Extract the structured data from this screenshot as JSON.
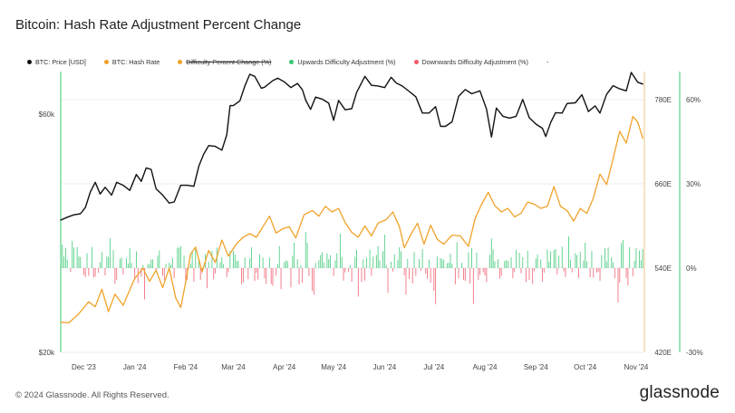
{
  "title": "Bitcoin: Hash Rate Adjustment Percent Change",
  "footer": "© 2024 Glassnode. All Rights Reserved.",
  "brand": "glassnode",
  "legend": [
    {
      "label": "BTC: Price [USD]",
      "color": "#111111",
      "strike": false
    },
    {
      "label": "BTC: Hash Rate",
      "color": "#f0a229",
      "strike": false
    },
    {
      "label": "Difficulty Percent Change (%)",
      "color": "#f0a229",
      "strike": true
    },
    {
      "label": "Upwards Difficulty Adjustment (%)",
      "color": "#37c871",
      "strike": false
    },
    {
      "label": "Downwards Difficulty Adjustment (%)",
      "color": "#ef5a6a",
      "strike": false
    },
    {
      "label": "-",
      "color": "",
      "strike": false
    }
  ],
  "chart_data": {
    "type": "line",
    "x_range": [
      "2023-11-17",
      "2024-11-06"
    ],
    "x_ticks": [
      {
        "label": "Dec '23",
        "date": "2023-12-01"
      },
      {
        "label": "Jan '24",
        "date": "2024-01-01"
      },
      {
        "label": "Feb '24",
        "date": "2024-02-01"
      },
      {
        "label": "Mar '24",
        "date": "2024-03-01"
      },
      {
        "label": "Apr '24",
        "date": "2024-04-01"
      },
      {
        "label": "May '24",
        "date": "2024-05-01"
      },
      {
        "label": "Jun '24",
        "date": "2024-06-01"
      },
      {
        "label": "Jul '24",
        "date": "2024-07-01"
      },
      {
        "label": "Aug '24",
        "date": "2024-08-01"
      },
      {
        "label": "Sep '24",
        "date": "2024-09-01"
      },
      {
        "label": "Oct '24",
        "date": "2024-10-01"
      },
      {
        "label": "Nov '24",
        "date": "2024-11-01"
      }
    ],
    "axes": {
      "price": {
        "scale": "log",
        "range": [
          20000,
          73000
        ],
        "tick_labels": [
          {
            "label": "$20k",
            "value": 20000
          },
          {
            "label": "$60k",
            "value": 60000
          }
        ]
      },
      "hash_rate": {
        "range": [
          420,
          820
        ],
        "tick_labels": [
          {
            "label": "420E",
            "value": 420
          },
          {
            "label": "540E",
            "value": 540
          },
          {
            "label": "660E",
            "value": 660
          },
          {
            "label": "780E",
            "value": 780
          }
        ]
      },
      "pct": {
        "range": [
          -30,
          70
        ],
        "tick_labels": [
          {
            "label": "-30%",
            "value": -30
          },
          {
            "label": "0%",
            "value": 0
          },
          {
            "label": "30%",
            "value": 30
          },
          {
            "label": "60%",
            "value": 60
          }
        ]
      }
    },
    "grid": true,
    "series": [
      {
        "name": "BTC: Price [USD]",
        "color": "#111111",
        "axis": "price",
        "points": [
          [
            "2023-11-17",
            36800
          ],
          [
            "2023-11-21",
            37300
          ],
          [
            "2023-11-25",
            37700
          ],
          [
            "2023-11-29",
            37900
          ],
          [
            "2023-12-02",
            39000
          ],
          [
            "2023-12-05",
            41900
          ],
          [
            "2023-12-08",
            43800
          ],
          [
            "2023-12-11",
            41500
          ],
          [
            "2023-12-14",
            42800
          ],
          [
            "2023-12-18",
            41300
          ],
          [
            "2023-12-21",
            43800
          ],
          [
            "2023-12-25",
            43200
          ],
          [
            "2023-12-29",
            42200
          ],
          [
            "2024-01-02",
            45400
          ],
          [
            "2024-01-05",
            44000
          ],
          [
            "2024-01-08",
            46800
          ],
          [
            "2024-01-11",
            46500
          ],
          [
            "2024-01-14",
            42500
          ],
          [
            "2024-01-18",
            41300
          ],
          [
            "2024-01-22",
            39800
          ],
          [
            "2024-01-25",
            40000
          ],
          [
            "2024-01-29",
            43200
          ],
          [
            "2024-02-02",
            43200
          ],
          [
            "2024-02-06",
            43000
          ],
          [
            "2024-02-09",
            47200
          ],
          [
            "2024-02-12",
            49900
          ],
          [
            "2024-02-15",
            51900
          ],
          [
            "2024-02-19",
            51700
          ],
          [
            "2024-02-23",
            50800
          ],
          [
            "2024-02-26",
            54500
          ],
          [
            "2024-02-28",
            62400
          ],
          [
            "2024-03-01",
            62400
          ],
          [
            "2024-03-05",
            63800
          ],
          [
            "2024-03-08",
            68300
          ],
          [
            "2024-03-11",
            72100
          ],
          [
            "2024-03-14",
            71400
          ],
          [
            "2024-03-18",
            67600
          ],
          [
            "2024-03-20",
            67900
          ],
          [
            "2024-03-25",
            70000
          ],
          [
            "2024-03-28",
            70800
          ],
          [
            "2024-04-01",
            69600
          ],
          [
            "2024-04-05",
            67800
          ],
          [
            "2024-04-09",
            69100
          ],
          [
            "2024-04-12",
            67100
          ],
          [
            "2024-04-14",
            64000
          ],
          [
            "2024-04-17",
            61300
          ],
          [
            "2024-04-20",
            64900
          ],
          [
            "2024-04-24",
            64300
          ],
          [
            "2024-04-28",
            63100
          ],
          [
            "2024-05-01",
            58300
          ],
          [
            "2024-05-04",
            63900
          ],
          [
            "2024-05-08",
            61200
          ],
          [
            "2024-05-12",
            61500
          ],
          [
            "2024-05-15",
            66300
          ],
          [
            "2024-05-20",
            71400
          ],
          [
            "2024-05-24",
            68500
          ],
          [
            "2024-05-28",
            68300
          ],
          [
            "2024-06-01",
            67800
          ],
          [
            "2024-06-05",
            71100
          ],
          [
            "2024-06-08",
            69300
          ],
          [
            "2024-06-12",
            68200
          ],
          [
            "2024-06-16",
            66600
          ],
          [
            "2024-06-20",
            65000
          ],
          [
            "2024-06-24",
            60300
          ],
          [
            "2024-06-28",
            60300
          ],
          [
            "2024-07-02",
            62100
          ],
          [
            "2024-07-05",
            56700
          ],
          [
            "2024-07-08",
            56700
          ],
          [
            "2024-07-12",
            57900
          ],
          [
            "2024-07-16",
            65100
          ],
          [
            "2024-07-20",
            67200
          ],
          [
            "2024-07-24",
            65900
          ],
          [
            "2024-07-29",
            66800
          ],
          [
            "2024-08-02",
            61400
          ],
          [
            "2024-08-05",
            54000
          ],
          [
            "2024-08-08",
            61700
          ],
          [
            "2024-08-12",
            59400
          ],
          [
            "2024-08-16",
            58900
          ],
          [
            "2024-08-20",
            59400
          ],
          [
            "2024-08-24",
            64200
          ],
          [
            "2024-08-28",
            59000
          ],
          [
            "2024-09-01",
            57300
          ],
          [
            "2024-09-05",
            56200
          ],
          [
            "2024-09-07",
            54100
          ],
          [
            "2024-09-10",
            57700
          ],
          [
            "2024-09-13",
            60400
          ],
          [
            "2024-09-17",
            60300
          ],
          [
            "2024-09-20",
            63000
          ],
          [
            "2024-09-25",
            63200
          ],
          [
            "2024-09-29",
            65600
          ],
          [
            "2024-10-03",
            60700
          ],
          [
            "2024-10-07",
            62300
          ],
          [
            "2024-10-10",
            60300
          ],
          [
            "2024-10-14",
            65700
          ],
          [
            "2024-10-18",
            68400
          ],
          [
            "2024-10-22",
            67400
          ],
          [
            "2024-10-26",
            66800
          ],
          [
            "2024-10-29",
            72700
          ],
          [
            "2024-11-02",
            69500
          ],
          [
            "2024-11-05",
            68900
          ]
        ]
      },
      {
        "name": "BTC: Hash Rate",
        "color": "#f0a229",
        "axis": "hash_rate",
        "points": [
          [
            "2023-11-17",
            463
          ],
          [
            "2023-11-22",
            462
          ],
          [
            "2023-11-28",
            475
          ],
          [
            "2023-12-04",
            492
          ],
          [
            "2023-12-08",
            485
          ],
          [
            "2023-12-12",
            510
          ],
          [
            "2023-12-16",
            478
          ],
          [
            "2023-12-20",
            503
          ],
          [
            "2023-12-25",
            487
          ],
          [
            "2024-01-01",
            525
          ],
          [
            "2024-01-06",
            540
          ],
          [
            "2024-01-10",
            521
          ],
          [
            "2024-01-14",
            537
          ],
          [
            "2024-01-18",
            512
          ],
          [
            "2024-01-22",
            540
          ],
          [
            "2024-01-26",
            497
          ],
          [
            "2024-01-29",
            484
          ],
          [
            "2024-02-01",
            520
          ],
          [
            "2024-02-04",
            560
          ],
          [
            "2024-02-07",
            570
          ],
          [
            "2024-02-11",
            535
          ],
          [
            "2024-02-15",
            565
          ],
          [
            "2024-02-19",
            548
          ],
          [
            "2024-02-23",
            580
          ],
          [
            "2024-02-27",
            557
          ],
          [
            "2024-03-03",
            575
          ],
          [
            "2024-03-07",
            584
          ],
          [
            "2024-03-11",
            589
          ],
          [
            "2024-03-15",
            584
          ],
          [
            "2024-03-19",
            599
          ],
          [
            "2024-03-23",
            614
          ],
          [
            "2024-03-27",
            590
          ],
          [
            "2024-03-31",
            596
          ],
          [
            "2024-04-04",
            599
          ],
          [
            "2024-04-08",
            583
          ],
          [
            "2024-04-13",
            616
          ],
          [
            "2024-04-18",
            622
          ],
          [
            "2024-04-22",
            614
          ],
          [
            "2024-04-26",
            628
          ],
          [
            "2024-04-30",
            620
          ],
          [
            "2024-05-04",
            625
          ],
          [
            "2024-05-08",
            605
          ],
          [
            "2024-05-12",
            591
          ],
          [
            "2024-05-16",
            584
          ],
          [
            "2024-05-20",
            600
          ],
          [
            "2024-05-24",
            586
          ],
          [
            "2024-05-28",
            604
          ],
          [
            "2024-06-02",
            609
          ],
          [
            "2024-06-06",
            620
          ],
          [
            "2024-06-10",
            599
          ],
          [
            "2024-06-13",
            569
          ],
          [
            "2024-06-17",
            588
          ],
          [
            "2024-06-21",
            604
          ],
          [
            "2024-06-25",
            574
          ],
          [
            "2024-06-29",
            601
          ],
          [
            "2024-07-03",
            581
          ],
          [
            "2024-07-07",
            574
          ],
          [
            "2024-07-12",
            587
          ],
          [
            "2024-07-17",
            586
          ],
          [
            "2024-07-22",
            571
          ],
          [
            "2024-07-26",
            610
          ],
          [
            "2024-07-30",
            631
          ],
          [
            "2024-08-03",
            648
          ],
          [
            "2024-08-07",
            629
          ],
          [
            "2024-08-11",
            620
          ],
          [
            "2024-08-15",
            625
          ],
          [
            "2024-08-19",
            613
          ],
          [
            "2024-08-23",
            618
          ],
          [
            "2024-08-27",
            634
          ],
          [
            "2024-08-31",
            631
          ],
          [
            "2024-09-04",
            625
          ],
          [
            "2024-09-08",
            628
          ],
          [
            "2024-09-12",
            656
          ],
          [
            "2024-09-16",
            628
          ],
          [
            "2024-09-20",
            622
          ],
          [
            "2024-09-24",
            607
          ],
          [
            "2024-09-28",
            625
          ],
          [
            "2024-10-02",
            618
          ],
          [
            "2024-10-06",
            640
          ],
          [
            "2024-10-10",
            674
          ],
          [
            "2024-10-14",
            659
          ],
          [
            "2024-10-18",
            696
          ],
          [
            "2024-10-22",
            735
          ],
          [
            "2024-10-26",
            718
          ],
          [
            "2024-10-30",
            756
          ],
          [
            "2024-11-02",
            748
          ],
          [
            "2024-11-05",
            725
          ]
        ]
      }
    ],
    "difficulty_adjustments": {
      "axis": "pct",
      "color_up": "#37c871",
      "color_down": "#ef5a6a",
      "note": "daily bars around 0%, mostly within -10% to +15%"
    }
  }
}
